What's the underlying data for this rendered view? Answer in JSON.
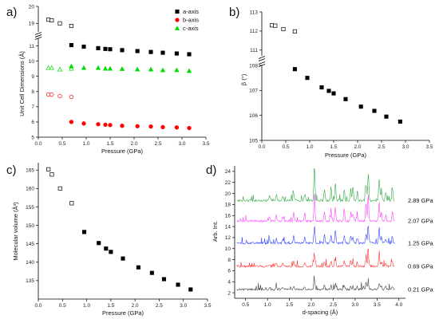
{
  "chart_data": [
    {
      "panel": "a)",
      "type": "scatter",
      "xlabel": "Pressure (GPa)",
      "ylabel": "Unit Cell Dimensions (Å)",
      "xlim": [
        0.0,
        3.5
      ],
      "xticks": [
        "0.0",
        "0.5",
        "1.0",
        "1.5",
        "2.0",
        "2.5",
        "3.0",
        "3.5"
      ],
      "ylim_lower": [
        5,
        11.5
      ],
      "yticks_lower": [
        "5",
        "6",
        "7",
        "8",
        "9",
        "10",
        "11"
      ],
      "ylim_upper": [
        18.5,
        20
      ],
      "yticks_upper": [
        "19",
        "20"
      ],
      "legend_position": "top-right",
      "series": [
        {
          "name": "a-axis",
          "color": "#000000",
          "marker": "square",
          "points_open": [
            [
              0.21,
              19.22
            ],
            [
              0.28,
              19.18
            ],
            [
              0.45,
              19.0
            ],
            [
              0.69,
              18.85
            ]
          ],
          "points_filled": [
            [
              0.69,
              11.05
            ],
            [
              0.95,
              10.95
            ],
            [
              1.25,
              10.85
            ],
            [
              1.4,
              10.8
            ],
            [
              1.5,
              10.78
            ],
            [
              1.75,
              10.72
            ],
            [
              2.07,
              10.66
            ],
            [
              2.35,
              10.6
            ],
            [
              2.6,
              10.55
            ],
            [
              2.89,
              10.5
            ],
            [
              3.15,
              10.45
            ]
          ]
        },
        {
          "name": "b-axis",
          "color": "#ff0000",
          "marker": "circle",
          "points_open": [
            [
              0.21,
              7.8
            ],
            [
              0.28,
              7.8
            ],
            [
              0.45,
              7.7
            ],
            [
              0.69,
              7.65
            ]
          ],
          "points_filled": [
            [
              0.69,
              6.0
            ],
            [
              0.95,
              5.9
            ],
            [
              1.25,
              5.85
            ],
            [
              1.4,
              5.82
            ],
            [
              1.5,
              5.8
            ],
            [
              1.75,
              5.75
            ],
            [
              2.07,
              5.72
            ],
            [
              2.35,
              5.7
            ],
            [
              2.6,
              5.66
            ],
            [
              2.89,
              5.64
            ],
            [
              3.15,
              5.6
            ]
          ]
        },
        {
          "name": "c-axis",
          "color": "#00dd00",
          "marker": "triangle",
          "points_open": [
            [
              0.21,
              9.55
            ],
            [
              0.28,
              9.55
            ],
            [
              0.45,
              9.45
            ],
            [
              0.69,
              9.5
            ]
          ],
          "points_filled": [
            [
              0.69,
              9.65
            ],
            [
              0.95,
              9.55
            ],
            [
              1.25,
              9.55
            ],
            [
              1.4,
              9.5
            ],
            [
              1.5,
              9.5
            ],
            [
              1.75,
              9.48
            ],
            [
              2.07,
              9.45
            ],
            [
              2.35,
              9.45
            ],
            [
              2.6,
              9.4
            ],
            [
              2.89,
              9.4
            ],
            [
              3.15,
              9.35
            ]
          ]
        }
      ]
    },
    {
      "panel": "b)",
      "type": "scatter",
      "xlabel": "Pressure (GPa)",
      "ylabel": "β (°)",
      "xlim": [
        0.0,
        3.5
      ],
      "xticks": [
        "0.0",
        "0.5",
        "1.0",
        "1.5",
        "2.0",
        "2.5",
        "3.0",
        "3.5"
      ],
      "ylim_lower": [
        105,
        108
      ],
      "yticks_lower": [
        "105",
        "106",
        "107",
        "108"
      ],
      "ylim_upper": [
        110.7,
        113
      ],
      "yticks_upper": [
        "111",
        "112",
        "113"
      ],
      "series": [
        {
          "name": "",
          "color": "#000000",
          "marker": "square",
          "points_open": [
            [
              0.21,
              112.3
            ],
            [
              0.28,
              112.28
            ],
            [
              0.45,
              112.1
            ],
            [
              0.69,
              111.98
            ]
          ],
          "points_filled": [
            [
              0.69,
              107.85
            ],
            [
              0.95,
              107.5
            ],
            [
              1.25,
              107.12
            ],
            [
              1.4,
              106.98
            ],
            [
              1.5,
              106.88
            ],
            [
              1.75,
              106.65
            ],
            [
              2.07,
              106.35
            ],
            [
              2.35,
              106.18
            ],
            [
              2.6,
              105.95
            ],
            [
              2.89,
              105.75
            ]
          ]
        }
      ]
    },
    {
      "panel": "c)",
      "type": "scatter",
      "xlabel": "Pressure (GPa)",
      "ylabel": "Molecular volume (Å³)",
      "xlim": [
        0.0,
        3.5
      ],
      "xticks": [
        "0.0",
        "0.5",
        "1.0",
        "1.5",
        "2.0",
        "2.5",
        "3.0",
        "3.5"
      ],
      "ylim": [
        130,
        167
      ],
      "yticks": [
        "135",
        "140",
        "145",
        "150",
        "155",
        "160",
        "165"
      ],
      "series": [
        {
          "name": "",
          "color": "#000000",
          "marker": "square",
          "points_open": [
            [
              0.21,
              165.2
            ],
            [
              0.28,
              163.8
            ],
            [
              0.45,
              160.0
            ],
            [
              0.69,
              156.0
            ]
          ],
          "points_filled": [
            [
              0.95,
              148.2
            ],
            [
              1.25,
              145.2
            ],
            [
              1.4,
              143.7
            ],
            [
              1.5,
              142.8
            ],
            [
              1.75,
              141.0
            ],
            [
              2.07,
              138.6
            ],
            [
              2.35,
              137.1
            ],
            [
              2.6,
              135.4
            ],
            [
              2.89,
              133.9
            ],
            [
              3.15,
              132.6
            ]
          ]
        }
      ]
    },
    {
      "panel": "d)",
      "type": "line",
      "xlabel": "d-spacing (Å)",
      "ylabel": "Arb. Int.",
      "xlim": [
        0.25,
        4.15
      ],
      "xticks": [
        "0.5",
        "1.0",
        "1.5",
        "2.0",
        "2.5",
        "3.0",
        "3.5",
        "4.0"
      ],
      "ylim": [
        1,
        25
      ],
      "yticks": [
        "2",
        "4",
        "6",
        "8",
        "10",
        "12",
        "14",
        "16",
        "18",
        "20",
        "22",
        "24"
      ],
      "series": [
        {
          "name": "0.21 GPa",
          "color": "#444444",
          "baseline": 2.6,
          "seed": 11
        },
        {
          "name": "0.69 GPa",
          "color": "#ff3333",
          "baseline": 6.8,
          "seed": 23
        },
        {
          "name": "1.25 GPa",
          "color": "#3344ff",
          "baseline": 11.0,
          "seed": 37
        },
        {
          "name": "2.07 GPa",
          "color": "#ff44ff",
          "baseline": 15.0,
          "seed": 51
        },
        {
          "name": "2.89 GPa",
          "color": "#33aa44",
          "baseline": 18.7,
          "seed": 67
        }
      ],
      "peaks": [
        [
          2.07,
          14.5
        ],
        [
          3.3,
          14
        ],
        [
          3.55,
          12
        ],
        [
          4.0,
          10
        ],
        [
          3.25,
          10
        ],
        [
          2.55,
          9
        ],
        [
          1.6,
          4.5
        ],
        [
          1.2,
          3.5
        ],
        [
          2.75,
          6
        ],
        [
          2.9,
          5
        ],
        [
          1.85,
          4
        ],
        [
          2.3,
          5
        ],
        [
          2.45,
          6
        ],
        [
          3.85,
          6
        ],
        [
          1.05,
          3
        ],
        [
          3.6,
          5
        ],
        [
          3.05,
          4.5
        ],
        [
          1.35,
          3
        ],
        [
          2.95,
          5.5
        ],
        [
          3.7,
          4
        ]
      ]
    }
  ]
}
